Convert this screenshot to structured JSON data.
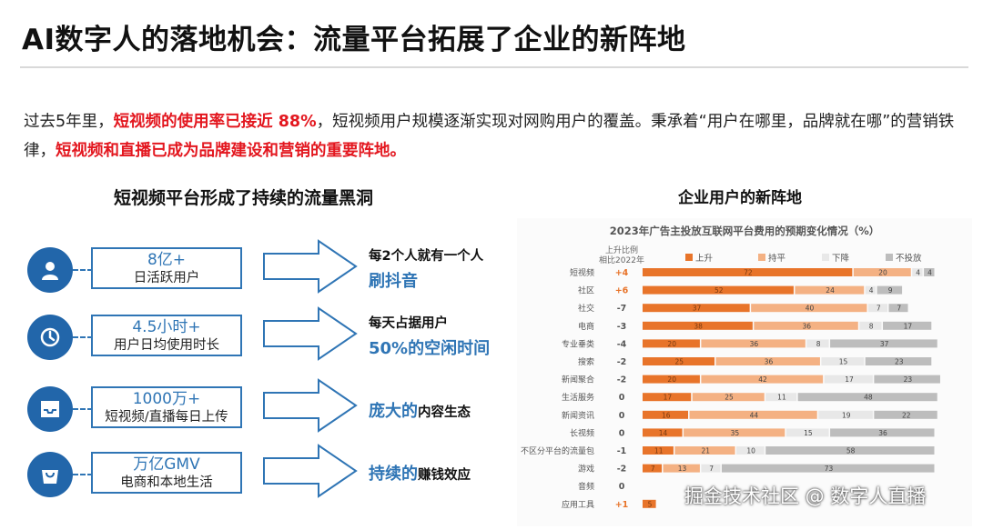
{
  "title": "AI数字人的落地机会：流量平台拓展了企业的新阵地",
  "intro": {
    "p1": "过去5年里，",
    "h1": "短视频的使用率已接近 88%",
    "p2": "，短视频用户规模逐渐实现对网购用户的覆盖。秉承着“用户在哪里，品牌就在哪”的营销铁律，",
    "h2": "短视频和直播已成为品牌建设和营销的重要阵地。"
  },
  "left_heading": "短视频平台形成了持续的流量黑洞",
  "right_heading": "企业用户的新阵地",
  "rows": [
    {
      "icon": "user-icon",
      "big": "8亿+",
      "small": "日活跃用户",
      "t1": "每2个人就有一个人",
      "t2": "刷抖音"
    },
    {
      "icon": "clock-icon",
      "big": "4.5小时+",
      "small": "用户日均使用时长",
      "t1": "每天占据用户",
      "t2": "50%的空闲时间"
    },
    {
      "icon": "upload-tray-icon",
      "big": "1000万+",
      "small": "短视频/直播每日上传",
      "m1": "庞大的",
      "m2": "内容生态"
    },
    {
      "icon": "shopping-bag-icon",
      "big": "万亿GMV",
      "small": "电商和本地生活",
      "m1": "持续的",
      "m2": "赚钱效应"
    }
  ],
  "colors": {
    "accent": "#2f75b5",
    "red": "#e3171f",
    "up": "#e8742a",
    "flat": "#f4b183",
    "down": "#e8e8e8",
    "none": "#bdbdbd"
  },
  "watermark": "掘金技术社区 @ 数字人直播",
  "chart_data": {
    "type": "bar",
    "stacked": true,
    "orientation": "horizontal",
    "title": "2023年广告主投放互联网平台费用的预期变化情况（%）",
    "change_header": "上升比例相比2022年",
    "legend": [
      "上升",
      "持平",
      "下降",
      "不投放"
    ],
    "categories": [
      "短视频",
      "社区",
      "社交",
      "电商",
      "专业垂类",
      "搜索",
      "新闻聚合",
      "生活服务",
      "新闻资讯",
      "长视频",
      "不区分平台的流量包",
      "游戏",
      "音频",
      "应用工具"
    ],
    "change": [
      "+4",
      "+6",
      "-7",
      "-3",
      "-4",
      "-2",
      "-2",
      "0",
      "0",
      "0",
      "-1",
      "-2",
      "0",
      "+1"
    ],
    "series": [
      {
        "name": "上升",
        "values": [
          72,
          52,
          37,
          38,
          20,
          25,
          20,
          17,
          16,
          14,
          11,
          7,
          0,
          5
        ]
      },
      {
        "name": "持平",
        "values": [
          20,
          24,
          40,
          36,
          36,
          36,
          42,
          25,
          44,
          35,
          21,
          13,
          0,
          0
        ]
      },
      {
        "name": "下降",
        "values": [
          4,
          4,
          7,
          8,
          8,
          15,
          17,
          11,
          19,
          15,
          10,
          7,
          0,
          0
        ]
      },
      {
        "name": "不投放",
        "values": [
          4,
          9,
          7,
          17,
          37,
          23,
          23,
          48,
          22,
          36,
          58,
          73,
          0,
          0
        ]
      }
    ]
  }
}
